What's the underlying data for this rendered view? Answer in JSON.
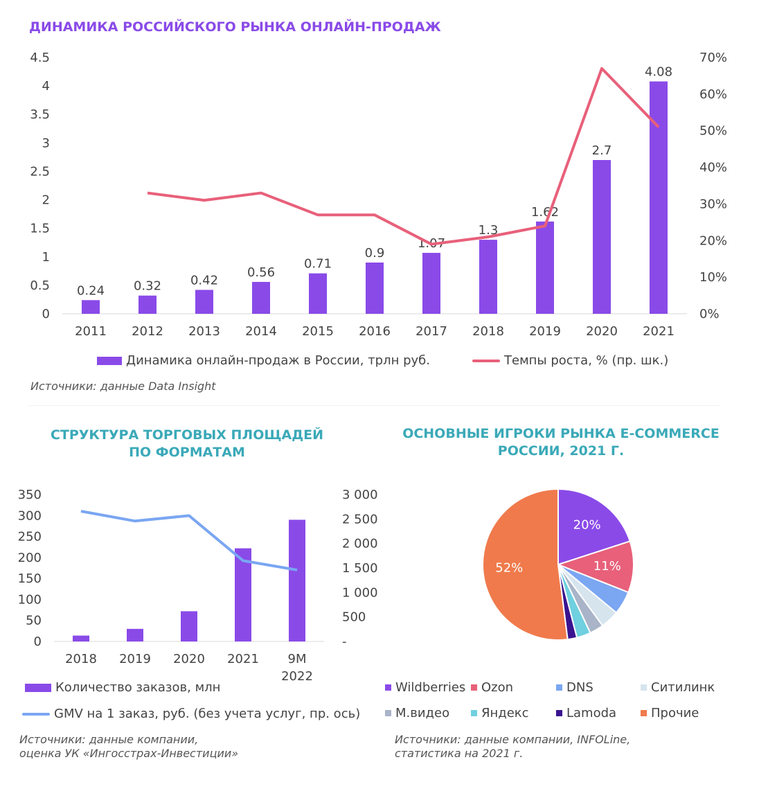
{
  "chart1": {
    "title": "ДИНАМИКА РОССИЙСКОГО РЫНКА ОНЛАЙН-ПРОДАЖ",
    "source": "Источники: данные Data Insight",
    "legend_bar": "Динамика онлайн-продаж в России, трлн руб.",
    "legend_line": "Темпы роста, % (пр. шк.)"
  },
  "chart2": {
    "title_line1": "СТРУКТУРА ТОРГОВЫХ ПЛОЩАДЕЙ",
    "title_line2": "ПО ФОРМАТАМ",
    "legend_bar": "Количество заказов, млн",
    "legend_line": "GMV на 1 заказ, руб. (без учета услуг, пр. ось)",
    "source_line1": "Источники: данные компании,",
    "source_line2": "оценка УК «Ингосстрах-Инвестиции»"
  },
  "chart3": {
    "title_line1": "ОСНОВНЫЕ ИГРОКИ РЫНКА E-COMMERCE",
    "title_line2": "РОССИИ, 2021 Г.",
    "source_line1": "Источники: данные компании, INFOLine,",
    "source_line2": "статистика на 2021 г."
  },
  "chart_data": [
    {
      "type": "bar",
      "title": "ДИНАМИКА РОССИЙСКОГО РЫНКА ОНЛАЙН-ПРОДАЖ",
      "categories": [
        "2011",
        "2012",
        "2013",
        "2014",
        "2015",
        "2016",
        "2017",
        "2018",
        "2019",
        "2020",
        "2021"
      ],
      "series": [
        {
          "name": "Динамика онлайн-продаж в России, трлн руб.",
          "kind": "bar",
          "color": "#8a4ae8",
          "values": [
            0.24,
            0.32,
            0.42,
            0.56,
            0.71,
            0.9,
            1.07,
            1.3,
            1.62,
            2.7,
            4.08
          ],
          "labels": [
            "0.24",
            "0.32",
            "0.42",
            "0.56",
            "0.71",
            "0.9",
            "1.07",
            "1.3",
            "1.62",
            "2.7",
            "4.08"
          ]
        },
        {
          "name": "Темпы роста, % (пр. шк.)",
          "kind": "line",
          "axis": "right",
          "color": "#e8607a",
          "values": [
            null,
            33,
            31,
            33,
            27,
            27,
            19,
            21,
            24,
            67,
            51
          ]
        }
      ],
      "y_left": {
        "min": 0,
        "max": 4.5,
        "ticks": [
          "0",
          "0.5",
          "1",
          "1.5",
          "2",
          "2.5",
          "3",
          "3.5",
          "4",
          "4.5"
        ]
      },
      "y_right": {
        "min": 0,
        "max": 70,
        "ticks": [
          "0%",
          "10%",
          "20%",
          "30%",
          "40%",
          "50%",
          "60%",
          "70%"
        ]
      }
    },
    {
      "type": "bar",
      "title": "СТРУКТУРА ТОРГОВЫХ ПЛОЩАДЕЙ ПО ФОРМАТАМ",
      "categories": [
        "2018",
        "2019",
        "2020",
        "2021",
        "9M 2022"
      ],
      "category_lines": [
        [
          "2018"
        ],
        [
          "2019"
        ],
        [
          "2020"
        ],
        [
          "2021"
        ],
        [
          "9M",
          "2022"
        ]
      ],
      "series": [
        {
          "name": "Количество заказов, млн",
          "kind": "bar",
          "color": "#8a4ae8",
          "values": [
            14,
            30,
            72,
            222,
            290
          ]
        },
        {
          "name": "GMV на 1 заказ, руб. (без учета услуг, пр. ось)",
          "kind": "line",
          "axis": "right",
          "color": "#7aa6f2",
          "values": [
            2660,
            2460,
            2570,
            1650,
            1460
          ]
        }
      ],
      "y_left": {
        "min": 0,
        "max": 350,
        "ticks": [
          "0",
          "50",
          "100",
          "150",
          "200",
          "250",
          "300",
          "350"
        ]
      },
      "y_right": {
        "min": 0,
        "max": 3000,
        "ticks": [
          "-",
          "500",
          "1 000",
          "1 500",
          "2 000",
          "2 500",
          "3 000"
        ]
      }
    },
    {
      "type": "pie",
      "title": "ОСНОВНЫЕ ИГРОКИ РЫНКА E-COMMERCE РОССИИ, 2021 Г.",
      "slices": [
        {
          "name": "Wildberries",
          "value": 20,
          "label": "20%",
          "color": "#8a4ae8"
        },
        {
          "name": "Ozon",
          "value": 11,
          "label": "11%",
          "color": "#e8607a"
        },
        {
          "name": "DNS",
          "value": 5,
          "label": "",
          "color": "#7aa6f2"
        },
        {
          "name": "Ситилинк",
          "value": 4,
          "label": "",
          "color": "#d6e4ee"
        },
        {
          "name": "М.видео",
          "value": 3,
          "label": "",
          "color": "#a9b4c8"
        },
        {
          "name": "Яндекс",
          "value": 3,
          "label": "",
          "color": "#6fd0e0"
        },
        {
          "name": "Lamoda",
          "value": 2,
          "label": "",
          "color": "#3a1490"
        },
        {
          "name": "Прочие",
          "value": 52,
          "label": "52%",
          "color": "#f07a4c"
        }
      ]
    }
  ]
}
